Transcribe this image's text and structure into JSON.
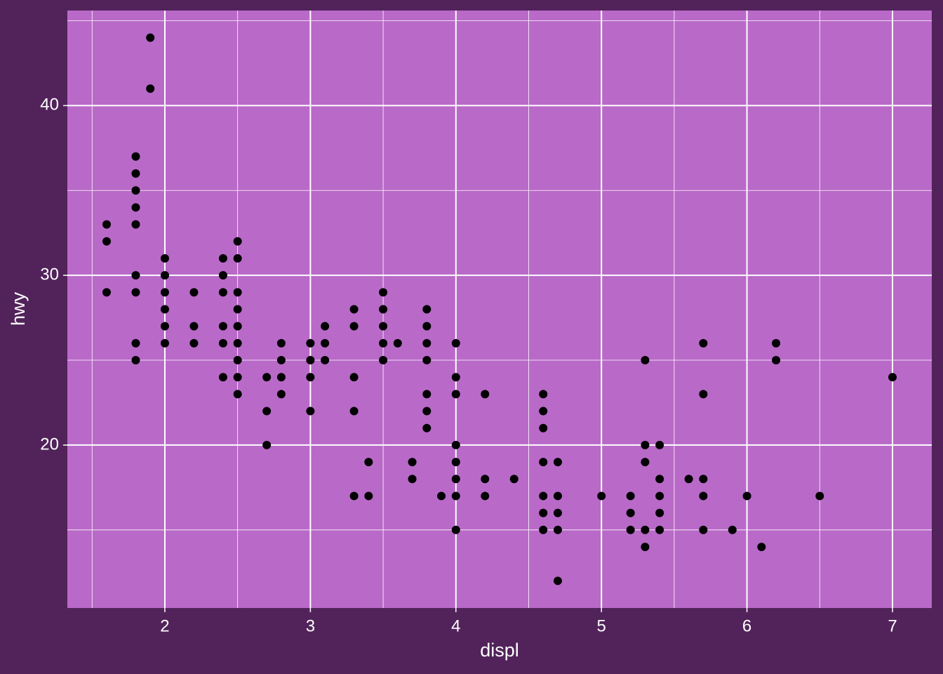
{
  "chart_data": {
    "type": "scatter",
    "x_label": "displ",
    "y_label": "hwy",
    "x": [
      1.6,
      1.6,
      1.6,
      1.8,
      1.8,
      1.8,
      1.8,
      1.8,
      1.8,
      1.8,
      1.8,
      1.8,
      1.9,
      1.9,
      2.0,
      2.0,
      2.0,
      2.0,
      2.0,
      2.0,
      2.2,
      2.2,
      2.2,
      2.4,
      2.4,
      2.4,
      2.4,
      2.4,
      2.4,
      2.5,
      2.5,
      2.5,
      2.5,
      2.5,
      2.5,
      2.5,
      2.5,
      2.5,
      2.7,
      2.7,
      2.7,
      2.8,
      2.8,
      2.8,
      2.8,
      3.0,
      3.0,
      3.0,
      3.0,
      3.1,
      3.1,
      3.1,
      3.3,
      3.3,
      3.3,
      3.3,
      3.3,
      3.4,
      3.4,
      3.5,
      3.5,
      3.5,
      3.5,
      3.5,
      3.6,
      3.7,
      3.7,
      3.8,
      3.8,
      3.8,
      3.8,
      3.8,
      3.8,
      3.8,
      3.9,
      4.0,
      4.0,
      4.0,
      4.0,
      4.0,
      4.0,
      4.0,
      4.0,
      4.2,
      4.2,
      4.2,
      4.4,
      4.6,
      4.6,
      4.6,
      4.6,
      4.6,
      4.6,
      4.6,
      4.7,
      4.7,
      4.7,
      4.7,
      4.7,
      5.0,
      5.2,
      5.2,
      5.2,
      5.3,
      5.3,
      5.3,
      5.3,
      5.3,
      5.4,
      5.4,
      5.4,
      5.4,
      5.4,
      5.6,
      5.7,
      5.7,
      5.7,
      5.7,
      5.7,
      5.9,
      6.0,
      6.1,
      6.2,
      6.2,
      6.5,
      7.0
    ],
    "values": [
      33,
      32,
      29,
      37,
      36,
      35,
      34,
      33,
      30,
      29,
      26,
      25,
      44,
      41,
      31,
      30,
      29,
      28,
      27,
      26,
      29,
      27,
      26,
      31,
      30,
      29,
      27,
      26,
      24,
      32,
      31,
      29,
      28,
      27,
      26,
      25,
      24,
      23,
      24,
      22,
      20,
      26,
      25,
      24,
      23,
      26,
      25,
      24,
      22,
      27,
      26,
      25,
      28,
      27,
      24,
      22,
      17,
      19,
      17,
      29,
      28,
      27,
      26,
      25,
      26,
      19,
      18,
      28,
      27,
      26,
      25,
      23,
      22,
      21,
      17,
      26,
      24,
      23,
      20,
      19,
      18,
      17,
      15,
      23,
      18,
      17,
      18,
      23,
      22,
      21,
      19,
      17,
      16,
      15,
      19,
      17,
      16,
      15,
      12,
      17,
      17,
      16,
      15,
      25,
      20,
      19,
      15,
      14,
      20,
      18,
      17,
      16,
      15,
      18,
      26,
      23,
      18,
      17,
      15,
      15,
      17,
      14,
      26,
      25,
      17,
      24
    ],
    "color": "#000000",
    "xlim": [
      1.33,
      7.27
    ],
    "ylim": [
      10.4,
      45.6
    ],
    "xticks": [
      2,
      3,
      4,
      5,
      6,
      7
    ],
    "yticks": [
      20,
      30,
      40
    ],
    "x_minor_breaks": [
      1.5,
      2.5,
      3.5,
      4.5,
      5.5,
      6.5
    ],
    "y_minor_breaks": [
      15,
      25,
      35,
      45
    ],
    "grid": true,
    "panel_color": "#b969c8",
    "grid_color": "#ffffff"
  }
}
